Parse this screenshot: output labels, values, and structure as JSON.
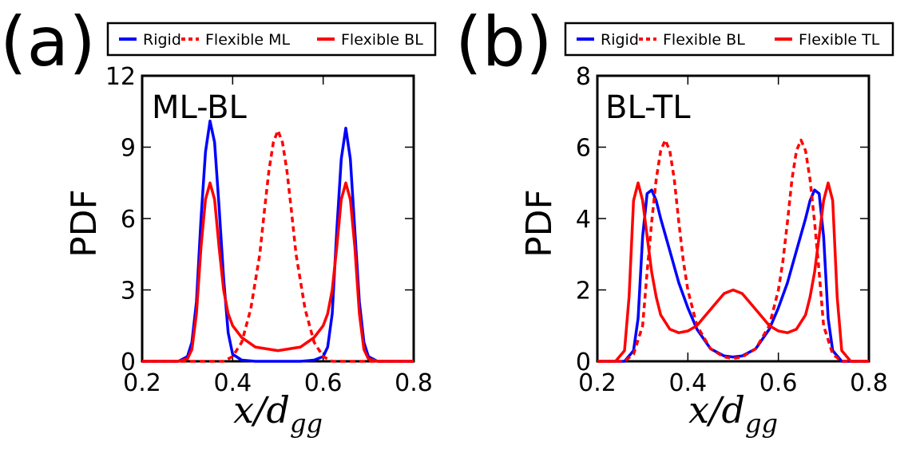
{
  "colors": {
    "rigid": "#0000ff",
    "flexible": "#ff0000",
    "axis": "#000000",
    "background": "#ffffff"
  },
  "chart_data": [
    {
      "type": "line",
      "panel_label": "(a)",
      "annotation": "ML-BL",
      "xlabel": "x/d",
      "xlabel_subscript": "gg",
      "ylabel": "PDF",
      "xlim": [
        0.2,
        0.8
      ],
      "ylim": [
        0,
        12
      ],
      "xticks": [
        "0.2",
        "0.4",
        "0.6",
        "0.8"
      ],
      "yticks": [
        "0",
        "3",
        "6",
        "9",
        "12"
      ],
      "xtick_values": [
        0.2,
        0.4,
        0.6,
        0.8
      ],
      "ytick_values": [
        0,
        3,
        6,
        9,
        12
      ],
      "legend": [
        {
          "label": "Rigid",
          "color": "#0000ff",
          "dash": "solid"
        },
        {
          "label": "Flexible ML",
          "color": "#ff0000",
          "dash": "dashed"
        },
        {
          "label": "Flexible BL",
          "color": "#ff0000",
          "dash": "solid"
        }
      ],
      "series": [
        {
          "name": "Rigid",
          "color": "#0000ff",
          "dash": "solid",
          "x": [
            0.2,
            0.28,
            0.3,
            0.31,
            0.32,
            0.33,
            0.34,
            0.35,
            0.36,
            0.37,
            0.38,
            0.39,
            0.4,
            0.42,
            0.45,
            0.5,
            0.55,
            0.58,
            0.6,
            0.61,
            0.62,
            0.63,
            0.64,
            0.65,
            0.66,
            0.67,
            0.68,
            0.69,
            0.7,
            0.72,
            0.8
          ],
          "y": [
            0,
            0,
            0.2,
            0.8,
            2.5,
            6.0,
            8.8,
            10.1,
            9.2,
            6.5,
            3.5,
            1.2,
            0.3,
            0.05,
            0,
            0,
            0,
            0.05,
            0.2,
            0.6,
            2.0,
            5.5,
            8.5,
            9.8,
            8.5,
            5.5,
            2.5,
            0.8,
            0.2,
            0,
            0
          ]
        },
        {
          "name": "Flexible ML",
          "color": "#ff0000",
          "dash": "dashed",
          "x": [
            0.2,
            0.38,
            0.4,
            0.42,
            0.44,
            0.46,
            0.47,
            0.48,
            0.49,
            0.5,
            0.51,
            0.52,
            0.53,
            0.54,
            0.56,
            0.58,
            0.6,
            0.62,
            0.8
          ],
          "y": [
            0,
            0,
            0.2,
            0.8,
            2.2,
            4.5,
            6.3,
            8.0,
            9.2,
            9.7,
            9.2,
            8.0,
            6.3,
            4.5,
            2.2,
            0.8,
            0.2,
            0,
            0
          ]
        },
        {
          "name": "Flexible BL",
          "color": "#ff0000",
          "dash": "solid",
          "x": [
            0.2,
            0.28,
            0.3,
            0.31,
            0.32,
            0.33,
            0.34,
            0.35,
            0.36,
            0.37,
            0.38,
            0.39,
            0.4,
            0.42,
            0.45,
            0.5,
            0.55,
            0.58,
            0.6,
            0.61,
            0.62,
            0.63,
            0.64,
            0.65,
            0.66,
            0.67,
            0.68,
            0.69,
            0.7,
            0.72,
            0.8
          ],
          "y": [
            0,
            0,
            0.1,
            0.5,
            2.0,
            4.8,
            6.8,
            7.5,
            6.8,
            4.8,
            3.0,
            2.0,
            1.5,
            1.0,
            0.6,
            0.45,
            0.6,
            1.0,
            1.5,
            2.0,
            3.0,
            4.8,
            6.8,
            7.5,
            6.8,
            4.8,
            2.0,
            0.5,
            0.1,
            0,
            0
          ]
        }
      ]
    },
    {
      "type": "line",
      "panel_label": "(b)",
      "annotation": "BL-TL",
      "xlabel": "x/d",
      "xlabel_subscript": "gg",
      "ylabel": "PDF",
      "xlim": [
        0.2,
        0.8
      ],
      "ylim": [
        0,
        8
      ],
      "xticks": [
        "0.2",
        "0.4",
        "0.6",
        "0.8"
      ],
      "yticks": [
        "0",
        "2",
        "4",
        "6",
        "8"
      ],
      "xtick_values": [
        0.2,
        0.4,
        0.6,
        0.8
      ],
      "ytick_values": [
        0,
        2,
        4,
        6,
        8
      ],
      "legend": [
        {
          "label": "Rigid",
          "color": "#0000ff",
          "dash": "solid"
        },
        {
          "label": "Flexible BL",
          "color": "#ff0000",
          "dash": "dashed"
        },
        {
          "label": "Flexible TL",
          "color": "#ff0000",
          "dash": "solid"
        }
      ],
      "series": [
        {
          "name": "Rigid",
          "color": "#0000ff",
          "dash": "solid",
          "x": [
            0.2,
            0.26,
            0.28,
            0.29,
            0.3,
            0.31,
            0.32,
            0.33,
            0.34,
            0.36,
            0.38,
            0.4,
            0.42,
            0.45,
            0.48,
            0.5,
            0.52,
            0.55,
            0.58,
            0.6,
            0.62,
            0.64,
            0.66,
            0.67,
            0.68,
            0.69,
            0.7,
            0.71,
            0.72,
            0.74,
            0.8
          ],
          "y": [
            0,
            0,
            0.3,
            1.2,
            3.5,
            4.7,
            4.8,
            4.5,
            4.0,
            3.1,
            2.2,
            1.5,
            0.9,
            0.35,
            0.15,
            0.12,
            0.15,
            0.35,
            0.9,
            1.5,
            2.2,
            3.1,
            4.0,
            4.5,
            4.8,
            4.7,
            3.5,
            1.2,
            0.3,
            0,
            0
          ]
        },
        {
          "name": "Flexible BL",
          "color": "#ff0000",
          "dash": "dashed",
          "x": [
            0.2,
            0.26,
            0.28,
            0.3,
            0.31,
            0.32,
            0.33,
            0.34,
            0.35,
            0.36,
            0.37,
            0.38,
            0.39,
            0.4,
            0.42,
            0.45,
            0.48,
            0.5,
            0.52,
            0.55,
            0.58,
            0.6,
            0.61,
            0.62,
            0.63,
            0.64,
            0.65,
            0.66,
            0.67,
            0.68,
            0.69,
            0.7,
            0.72,
            0.74,
            0.8
          ],
          "y": [
            0,
            0,
            0.2,
            1.0,
            2.5,
            3.9,
            5.1,
            5.9,
            6.2,
            5.9,
            5.1,
            3.9,
            2.8,
            2.0,
            1.0,
            0.35,
            0.12,
            0.08,
            0.12,
            0.35,
            1.0,
            2.0,
            2.8,
            3.9,
            5.1,
            5.9,
            6.2,
            5.9,
            5.1,
            3.9,
            2.5,
            1.0,
            0.2,
            0,
            0
          ]
        },
        {
          "name": "Flexible TL",
          "color": "#ff0000",
          "dash": "solid",
          "x": [
            0.2,
            0.24,
            0.26,
            0.27,
            0.28,
            0.29,
            0.3,
            0.31,
            0.32,
            0.33,
            0.34,
            0.36,
            0.38,
            0.4,
            0.42,
            0.44,
            0.46,
            0.48,
            0.5,
            0.52,
            0.54,
            0.56,
            0.58,
            0.6,
            0.62,
            0.64,
            0.66,
            0.67,
            0.68,
            0.69,
            0.7,
            0.71,
            0.72,
            0.73,
            0.74,
            0.76,
            0.8
          ],
          "y": [
            0,
            0,
            0.3,
            1.8,
            4.5,
            5.0,
            4.5,
            3.5,
            2.5,
            1.8,
            1.3,
            0.9,
            0.8,
            0.85,
            1.0,
            1.3,
            1.6,
            1.9,
            2.0,
            1.9,
            1.6,
            1.3,
            1.0,
            0.85,
            0.8,
            0.9,
            1.3,
            1.8,
            2.5,
            3.5,
            4.5,
            5.0,
            4.5,
            1.8,
            0.3,
            0,
            0
          ]
        }
      ]
    }
  ]
}
